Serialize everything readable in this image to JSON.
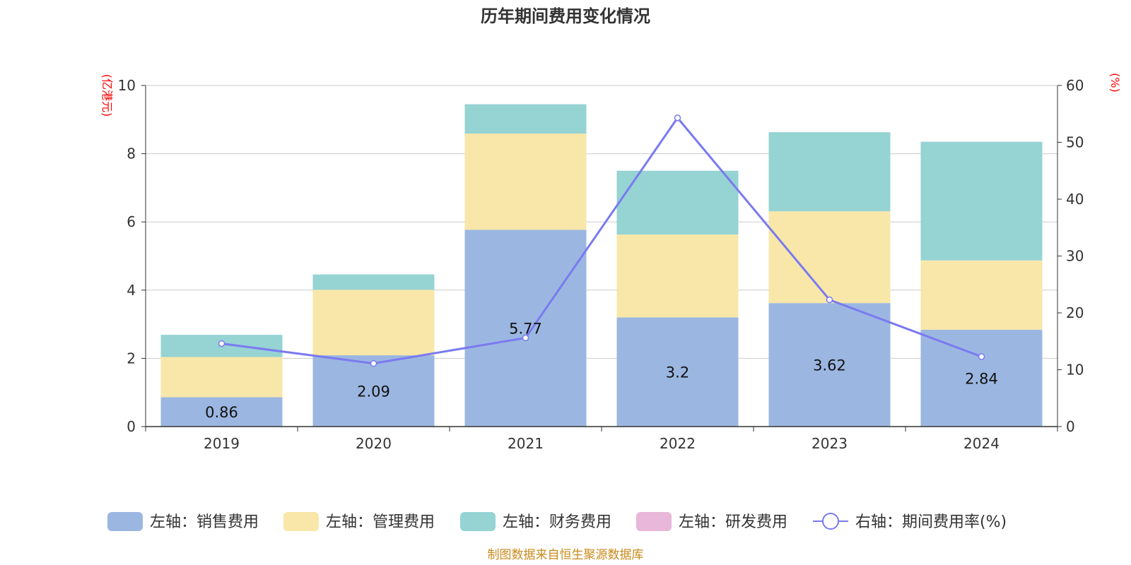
{
  "chart_data": {
    "type": "bar",
    "title": "历年期间费用变化情况",
    "categories": [
      "2019",
      "2020",
      "2021",
      "2022",
      "2023",
      "2024"
    ],
    "left_axis": {
      "unit": "(亿港元)",
      "ylim": [
        0,
        10
      ],
      "ticks": [
        "0",
        "2",
        "4",
        "6",
        "8",
        "10"
      ]
    },
    "right_axis": {
      "unit": "(%)",
      "ylim": [
        0,
        60
      ],
      "ticks": [
        "0",
        "10",
        "20",
        "30",
        "40",
        "50",
        "60"
      ]
    },
    "series": [
      {
        "name": "左轴：销售费用",
        "type": "bar",
        "axis": "left",
        "color": "#9bb7e1",
        "values": [
          0.86,
          2.09,
          5.77,
          3.2,
          3.62,
          2.84
        ],
        "labels": [
          "0.86",
          "2.09",
          "5.77",
          "3.2",
          "3.62",
          "2.84"
        ]
      },
      {
        "name": "左轴：管理费用",
        "type": "bar",
        "axis": "left",
        "color": "#f8e7a9",
        "values": [
          1.18,
          1.92,
          2.82,
          2.43,
          2.69,
          2.03
        ]
      },
      {
        "name": "左轴：财务费用",
        "type": "bar",
        "axis": "left",
        "color": "#96d3d3",
        "values": [
          0.65,
          0.45,
          0.86,
          1.87,
          2.32,
          3.48
        ]
      },
      {
        "name": "左轴：研发费用",
        "type": "bar",
        "axis": "left",
        "color": "#e8b7d9",
        "values": [
          0,
          0,
          0,
          0,
          0,
          0
        ]
      },
      {
        "name": "右轴：期间费用率(%)",
        "type": "line",
        "axis": "right",
        "color": "#7a7af0",
        "values": [
          14.6,
          11.1,
          15.6,
          54.3,
          22.3,
          12.3
        ]
      }
    ],
    "grid": true,
    "legend_position": "bottom",
    "source": "制图数据来自恒生聚源数据库"
  }
}
